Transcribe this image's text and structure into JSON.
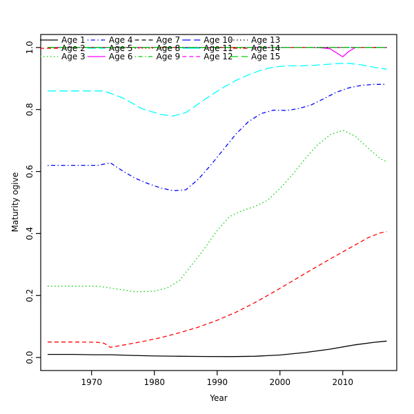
{
  "chart_data": {
    "type": "line",
    "title": "",
    "xlabel": "Year",
    "ylabel": "Maturity ogive",
    "grid": false,
    "legend_position": "top-left-inside",
    "legend_columns": 5,
    "xlim": [
      1961.9,
      2018.6
    ],
    "ylim": [
      -0.042,
      1.042
    ],
    "x_ticks": [
      {
        "v": 1970,
        "label": "1970"
      },
      {
        "v": 1980,
        "label": "1980"
      },
      {
        "v": 1990,
        "label": "1990"
      },
      {
        "v": 2000,
        "label": "2000"
      },
      {
        "v": 2010,
        "label": "2010"
      }
    ],
    "y_ticks": [
      {
        "v": 0.0,
        "label": "0.0"
      },
      {
        "v": 0.2,
        "label": "0.2"
      },
      {
        "v": 0.4,
        "label": "0.4"
      },
      {
        "v": 0.6,
        "label": "0.6"
      },
      {
        "v": 0.8,
        "label": "0.8"
      },
      {
        "v": 1.0,
        "label": "1.0"
      }
    ],
    "colors": {
      "black": "#000000",
      "red": "#FF0000",
      "green": "#00CD00",
      "blue": "#0000FF",
      "cyan": "#00FFFF",
      "magenta": "#FF00FF"
    },
    "series": [
      {
        "name": "Age 1",
        "color": "#000000",
        "linetype": "solid",
        "points": [
          [
            1963,
            0.01
          ],
          [
            1967,
            0.01
          ],
          [
            1970,
            0.009
          ],
          [
            1973,
            0.009
          ],
          [
            1976,
            0.007
          ],
          [
            1980,
            0.005
          ],
          [
            1984,
            0.004
          ],
          [
            1988,
            0.0035
          ],
          [
            1992,
            0.003
          ],
          [
            1996,
            0.004
          ],
          [
            2000,
            0.008
          ],
          [
            2004,
            0.016
          ],
          [
            2008,
            0.027
          ],
          [
            2012,
            0.041
          ],
          [
            2015,
            0.049
          ],
          [
            2017,
            0.053
          ]
        ]
      },
      {
        "name": "Age 2",
        "color": "#FF0000",
        "linetype": "dashed",
        "points": [
          [
            1963,
            0.05
          ],
          [
            1968,
            0.05
          ],
          [
            1971,
            0.049
          ],
          [
            1972,
            0.046
          ],
          [
            1973,
            0.033
          ],
          [
            1975,
            0.04
          ],
          [
            1978,
            0.051
          ],
          [
            1981,
            0.064
          ],
          [
            1984,
            0.08
          ],
          [
            1987,
            0.098
          ],
          [
            1990,
            0.12
          ],
          [
            1993,
            0.146
          ],
          [
            1996,
            0.177
          ],
          [
            1999,
            0.211
          ],
          [
            2002,
            0.247
          ],
          [
            2005,
            0.283
          ],
          [
            2008,
            0.318
          ],
          [
            2011,
            0.352
          ],
          [
            2014,
            0.386
          ],
          [
            2016,
            0.402
          ],
          [
            2017,
            0.406
          ]
        ]
      },
      {
        "name": "Age 3",
        "color": "#00CD00",
        "linetype": "dotted",
        "points": [
          [
            1963,
            0.23
          ],
          [
            1967,
            0.23
          ],
          [
            1971,
            0.23
          ],
          [
            1974,
            0.221
          ],
          [
            1977,
            0.212
          ],
          [
            1980,
            0.214
          ],
          [
            1982,
            0.224
          ],
          [
            1984,
            0.248
          ],
          [
            1986,
            0.3
          ],
          [
            1988,
            0.352
          ],
          [
            1990,
            0.41
          ],
          [
            1992,
            0.455
          ],
          [
            1994,
            0.474
          ],
          [
            1996,
            0.487
          ],
          [
            1998,
            0.507
          ],
          [
            2000,
            0.545
          ],
          [
            2002,
            0.59
          ],
          [
            2004,
            0.641
          ],
          [
            2006,
            0.686
          ],
          [
            2008,
            0.719
          ],
          [
            2010,
            0.733
          ],
          [
            2012,
            0.714
          ],
          [
            2014,
            0.676
          ],
          [
            2016,
            0.641
          ],
          [
            2017,
            0.632
          ]
        ]
      },
      {
        "name": "Age 4",
        "color": "#0000FF",
        "linetype": "dotdash",
        "points": [
          [
            1963,
            0.62
          ],
          [
            1967,
            0.62
          ],
          [
            1971,
            0.62
          ],
          [
            1973,
            0.628
          ],
          [
            1975,
            0.601
          ],
          [
            1977,
            0.578
          ],
          [
            1979,
            0.561
          ],
          [
            1981,
            0.547
          ],
          [
            1983,
            0.538
          ],
          [
            1985,
            0.541
          ],
          [
            1987,
            0.575
          ],
          [
            1989,
            0.621
          ],
          [
            1991,
            0.671
          ],
          [
            1993,
            0.721
          ],
          [
            1995,
            0.761
          ],
          [
            1997,
            0.787
          ],
          [
            1999,
            0.798
          ],
          [
            2001,
            0.797
          ],
          [
            2003,
            0.803
          ],
          [
            2005,
            0.815
          ],
          [
            2007,
            0.835
          ],
          [
            2009,
            0.856
          ],
          [
            2011,
            0.87
          ],
          [
            2013,
            0.878
          ],
          [
            2015,
            0.881
          ],
          [
            2017,
            0.881
          ]
        ]
      },
      {
        "name": "Age 5",
        "color": "#00FFFF",
        "linetype": "longdash",
        "points": [
          [
            1963,
            0.86
          ],
          [
            1967,
            0.86
          ],
          [
            1972,
            0.86
          ],
          [
            1975,
            0.837
          ],
          [
            1978,
            0.803
          ],
          [
            1981,
            0.784
          ],
          [
            1983,
            0.779
          ],
          [
            1985,
            0.79
          ],
          [
            1987,
            0.818
          ],
          [
            1989,
            0.846
          ],
          [
            1991,
            0.871
          ],
          [
            1993,
            0.894
          ],
          [
            1995,
            0.912
          ],
          [
            1997,
            0.927
          ],
          [
            1999,
            0.937
          ],
          [
            2001,
            0.941
          ],
          [
            2003,
            0.941
          ],
          [
            2005,
            0.942
          ],
          [
            2007,
            0.945
          ],
          [
            2009,
            0.948
          ],
          [
            2011,
            0.949
          ],
          [
            2013,
            0.944
          ],
          [
            2015,
            0.936
          ],
          [
            2017,
            0.93
          ]
        ]
      },
      {
        "name": "Age 6",
        "color": "#FF00FF",
        "linetype": "solid",
        "points": [
          [
            1963,
            1.0
          ],
          [
            2006,
            1.0
          ],
          [
            2008,
            0.996
          ],
          [
            2010,
            0.97
          ],
          [
            2011,
            0.988
          ],
          [
            2012,
            1.0
          ],
          [
            2017,
            1.0
          ]
        ]
      },
      {
        "name": "Age 7",
        "color": "#000000",
        "linetype": "dashed",
        "points": [
          [
            1963,
            1.0
          ],
          [
            2017,
            1.0
          ]
        ]
      },
      {
        "name": "Age 8",
        "color": "#FF0000",
        "linetype": "dotted",
        "points": [
          [
            1963,
            1.0
          ],
          [
            2017,
            1.0
          ]
        ]
      },
      {
        "name": "Age 9",
        "color": "#00CD00",
        "linetype": "dotdash",
        "points": [
          [
            1963,
            1.0
          ],
          [
            2017,
            1.0
          ]
        ]
      },
      {
        "name": "Age 10",
        "color": "#0000FF",
        "linetype": "longdash",
        "points": [
          [
            1963,
            1.0
          ],
          [
            2017,
            1.0
          ]
        ]
      },
      {
        "name": "Age 11",
        "color": "#00FFFF",
        "linetype": "solid",
        "points": [
          [
            1963,
            1.0
          ],
          [
            2017,
            1.0
          ]
        ]
      },
      {
        "name": "Age 12",
        "color": "#FF00FF",
        "linetype": "dashed",
        "points": [
          [
            1963,
            1.0
          ],
          [
            2017,
            1.0
          ]
        ]
      },
      {
        "name": "Age 13",
        "color": "#000000",
        "linetype": "dotted",
        "points": [
          [
            1963,
            1.0
          ],
          [
            2017,
            1.0
          ]
        ]
      },
      {
        "name": "Age 14",
        "color": "#FF0000",
        "linetype": "dotdash",
        "points": [
          [
            1963,
            1.0
          ],
          [
            2017,
            1.0
          ]
        ]
      },
      {
        "name": "Age 15",
        "color": "#00CD00",
        "linetype": "longdash",
        "points": [
          [
            1963,
            1.0
          ],
          [
            2017,
            1.0
          ]
        ]
      }
    ]
  }
}
